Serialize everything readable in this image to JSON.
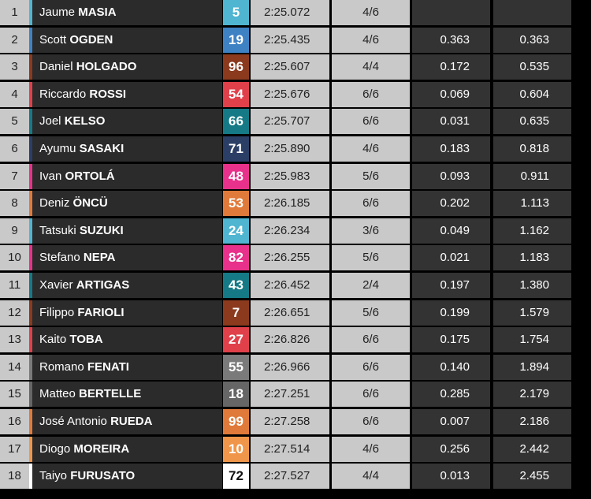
{
  "table": {
    "rows": [
      {
        "pos": "1",
        "first": "Jaume",
        "last": "MASIA",
        "number": "5",
        "color": "#4fb5d1",
        "time": "2:25.072",
        "laps": "4/6"
      },
      {
        "pos": "2",
        "first": "Scott",
        "last": "OGDEN",
        "number": "19",
        "color": "#3f82c4",
        "time": "2:25.435",
        "laps": "4/6",
        "gap": "0.363",
        "diff": "0.363"
      },
      {
        "pos": "3",
        "first": "Daniel",
        "last": "HOLGADO",
        "number": "96",
        "color": "#8b3a1e",
        "time": "2:25.607",
        "laps": "4/4",
        "gap": "0.172",
        "diff": "0.535"
      },
      {
        "pos": "4",
        "first": "Riccardo",
        "last": "ROSSI",
        "number": "54",
        "color": "#e0404a",
        "time": "2:25.676",
        "laps": "6/6",
        "gap": "0.069",
        "diff": "0.604"
      },
      {
        "pos": "5",
        "first": "Joel",
        "last": "KELSO",
        "number": "66",
        "color": "#157a86",
        "time": "2:25.707",
        "laps": "6/6",
        "gap": "0.031",
        "diff": "0.635"
      },
      {
        "pos": "6",
        "first": "Ayumu",
        "last": "SASAKI",
        "number": "71",
        "color": "#2b3f66",
        "time": "2:25.890",
        "laps": "4/6",
        "gap": "0.183",
        "diff": "0.818"
      },
      {
        "pos": "7",
        "first": "Ivan",
        "last": "ORTOLÁ",
        "number": "48",
        "color": "#e8318a",
        "time": "2:25.983",
        "laps": "5/6",
        "gap": "0.093",
        "diff": "0.911"
      },
      {
        "pos": "8",
        "first": "Deniz",
        "last": "ÖNCÜ",
        "number": "53",
        "color": "#e07a3a",
        "time": "2:26.185",
        "laps": "6/6",
        "gap": "0.202",
        "diff": "1.113"
      },
      {
        "pos": "9",
        "first": "Tatsuki",
        "last": "SUZUKI",
        "number": "24",
        "color": "#4fb5d1",
        "time": "2:26.234",
        "laps": "3/6",
        "gap": "0.049",
        "diff": "1.162"
      },
      {
        "pos": "10",
        "first": "Stefano",
        "last": "NEPA",
        "number": "82",
        "color": "#e8318a",
        "time": "2:26.255",
        "laps": "5/6",
        "gap": "0.021",
        "diff": "1.183"
      },
      {
        "pos": "11",
        "first": "Xavier",
        "last": "ARTIGAS",
        "number": "43",
        "color": "#157a86",
        "time": "2:26.452",
        "laps": "2/4",
        "gap": "0.197",
        "diff": "1.380"
      },
      {
        "pos": "12",
        "first": "Filippo",
        "last": "FARIOLI",
        "number": "7",
        "color": "#8b3a1e",
        "time": "2:26.651",
        "laps": "5/6",
        "gap": "0.199",
        "diff": "1.579"
      },
      {
        "pos": "13",
        "first": "Kaito",
        "last": "TOBA",
        "number": "27",
        "color": "#e0404a",
        "time": "2:26.826",
        "laps": "6/6",
        "gap": "0.175",
        "diff": "1.754"
      },
      {
        "pos": "14",
        "first": "Romano",
        "last": "FENATI",
        "number": "55",
        "color": "#7a7a7a",
        "time": "2:26.966",
        "laps": "6/6",
        "gap": "0.140",
        "diff": "1.894"
      },
      {
        "pos": "15",
        "first": "Matteo",
        "last": "BERTELLE",
        "number": "18",
        "color": "#666666",
        "time": "2:27.251",
        "laps": "6/6",
        "gap": "0.285",
        "diff": "2.179"
      },
      {
        "pos": "16",
        "first": "José Antonio",
        "last": "RUEDA",
        "number": "99",
        "color": "#e07a3a",
        "time": "2:27.258",
        "laps": "6/6",
        "gap": "0.007",
        "diff": "2.186"
      },
      {
        "pos": "17",
        "first": "Diogo",
        "last": "MOREIRA",
        "number": "10",
        "color": "#f0964a",
        "time": "2:27.514",
        "laps": "4/6",
        "gap": "0.256",
        "diff": "2.442"
      },
      {
        "pos": "18",
        "first": "Taiyo",
        "last": "FURUSATO",
        "number": "72",
        "color": "#ffffff",
        "time": "2:27.527",
        "laps": "4/4",
        "gap": "0.013",
        "diff": "2.455"
      }
    ]
  }
}
